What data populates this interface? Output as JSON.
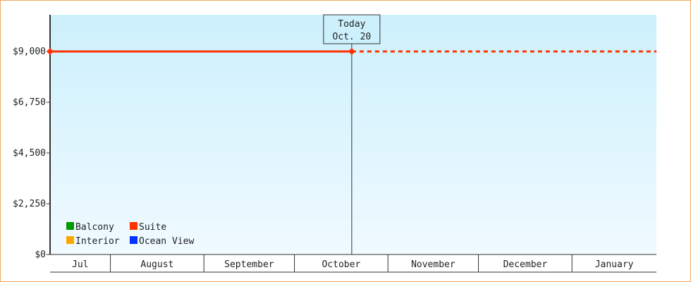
{
  "chart_data": {
    "type": "line",
    "title": "",
    "xlabel": "",
    "ylabel": "",
    "ylim": [
      0,
      10625
    ],
    "y_ticks": [
      "$0",
      "$2,250",
      "$4,500",
      "$6,750",
      "$9,000"
    ],
    "y_tick_values": [
      0,
      2250,
      4500,
      6750,
      9000
    ],
    "x_range": [
      "Jul 12",
      "Jan 28"
    ],
    "months": [
      {
        "label": "Jul",
        "start": "Jul 12",
        "days": 20
      },
      {
        "label": "August",
        "days": 31
      },
      {
        "label": "September",
        "days": 30
      },
      {
        "label": "October",
        "days": 31
      },
      {
        "label": "November",
        "days": 30
      },
      {
        "label": "December",
        "days": 31
      },
      {
        "label": "January",
        "days": 28
      }
    ],
    "today": {
      "line1": "Today",
      "line2": "Oct. 20",
      "day_index": 100
    },
    "series": [
      {
        "name": "Balcony",
        "color": "#009900",
        "points": []
      },
      {
        "name": "Suite",
        "color": "#ff3300",
        "points": [
          {
            "x": "Jul 12",
            "y": 9000
          },
          {
            "x": "Oct 20",
            "y": 9000
          }
        ],
        "projection_to": "Jan 28"
      },
      {
        "name": "Interior",
        "color": "#ffa500",
        "points": []
      },
      {
        "name": "Ocean View",
        "color": "#0033ff",
        "points": []
      }
    ],
    "legend_placement": "bottom-left",
    "background_gradient": [
      "#ccf0fc",
      "#f0faff"
    ],
    "grid": false
  }
}
